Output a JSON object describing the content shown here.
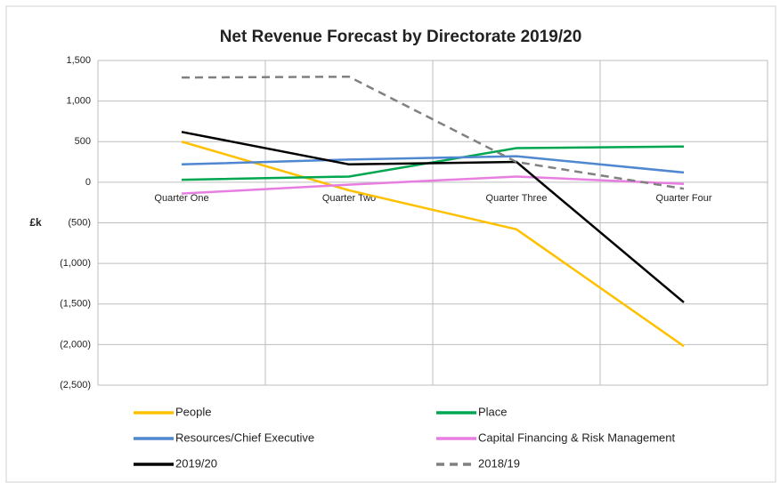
{
  "chart_data": {
    "type": "line",
    "title": "Net Revenue Forecast by Directorate 2019/20",
    "y_label": "£k",
    "categories": [
      "Quarter One",
      "Quarter Two",
      "Quarter Three",
      "Quarter Four"
    ],
    "series": [
      {
        "name": "People",
        "color": "#ffc000",
        "dash": false,
        "values": [
          500,
          -100,
          -580,
          -2020
        ]
      },
      {
        "name": "Place",
        "color": "#00a650",
        "dash": false,
        "values": [
          30,
          70,
          420,
          440
        ]
      },
      {
        "name": "Resources/Chief Executive",
        "color": "#4f87d0",
        "dash": false,
        "values": [
          220,
          280,
          320,
          120
        ]
      },
      {
        "name": "Capital Financing & Risk Management",
        "color": "#e87ee0",
        "dash": false,
        "values": [
          -140,
          -30,
          70,
          -20
        ]
      },
      {
        "name": "2019/20",
        "color": "#000000",
        "dash": false,
        "values": [
          620,
          220,
          250,
          -1480
        ]
      },
      {
        "name": "2018/19",
        "color": "#808080",
        "dash": true,
        "values": [
          1290,
          1300,
          250,
          -80
        ]
      }
    ],
    "ylim": [
      -2500,
      1500
    ],
    "yticks": [
      {
        "value": -2500,
        "label": "(2,500)"
      },
      {
        "value": -2000,
        "label": "(2,000)"
      },
      {
        "value": -1500,
        "label": "(1,500)"
      },
      {
        "value": -1000,
        "label": "(1,000)"
      },
      {
        "value": -500,
        "label": "(500)"
      },
      0,
      500,
      {
        "value": 1000,
        "label": "1,000"
      },
      {
        "value": 1500,
        "label": "1,500"
      }
    ],
    "grid": true
  }
}
